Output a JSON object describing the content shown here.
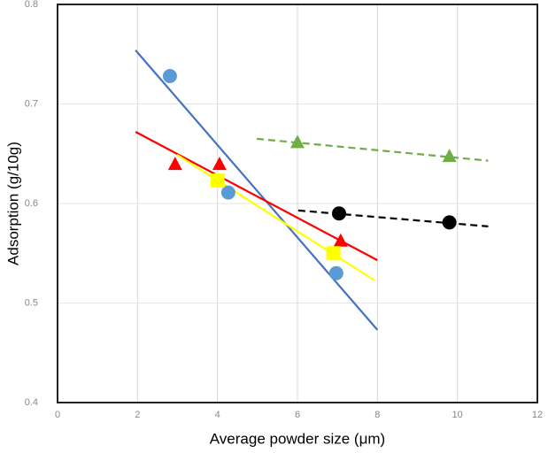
{
  "chart_data": {
    "type": "scatter",
    "xlabel": "Average powder size (μm)",
    "ylabel": "Adsorption (g/10g)",
    "xlim": [
      0,
      12
    ],
    "xticks": [
      0,
      2,
      4,
      6,
      8,
      10,
      12
    ],
    "ylim": [
      0.4,
      0.8
    ],
    "yticks": [
      0.4,
      0.5,
      0.6,
      0.7,
      0.8
    ],
    "grid": true,
    "series": [
      {
        "color": "#5b9bd5",
        "marker": "circle",
        "x": [
          2.81,
          4.27,
          6.97
        ],
        "values": [
          0.728,
          0.611,
          0.53
        ]
      },
      {
        "color": "#ff0000",
        "marker": "triangle",
        "x": [
          2.94,
          4.05,
          7.08
        ],
        "values": [
          0.639,
          0.639,
          0.562
        ]
      },
      {
        "color": "#ffff00",
        "marker": "square",
        "x": [
          4.0,
          6.9
        ],
        "values": [
          0.623,
          0.55
        ]
      },
      {
        "color": "#70ad47",
        "marker": "triangle",
        "x": [
          6.0,
          9.8
        ],
        "values": [
          0.661,
          0.647
        ]
      },
      {
        "color": "#000000",
        "marker": "circle",
        "x": [
          7.04,
          9.8
        ],
        "values": [
          0.59,
          0.581
        ]
      }
    ],
    "lines": [
      {
        "color": "#4472c4",
        "dashed": false,
        "x": [
          1.95,
          8.0
        ],
        "values": [
          0.754,
          0.473
        ]
      },
      {
        "color": "#ff0000",
        "dashed": false,
        "x": [
          1.95,
          8.0
        ],
        "values": [
          0.672,
          0.543
        ]
      },
      {
        "color": "#ffff00",
        "dashed": false,
        "x": [
          2.99,
          7.92
        ],
        "values": [
          0.649,
          0.523
        ]
      },
      {
        "color": "#70ad47",
        "dashed": true,
        "x": [
          4.98,
          10.77
        ],
        "values": [
          0.665,
          0.643
        ]
      },
      {
        "color": "#000000",
        "dashed": true,
        "x": [
          6.02,
          10.77
        ],
        "values": [
          0.593,
          0.577
        ]
      }
    ]
  }
}
